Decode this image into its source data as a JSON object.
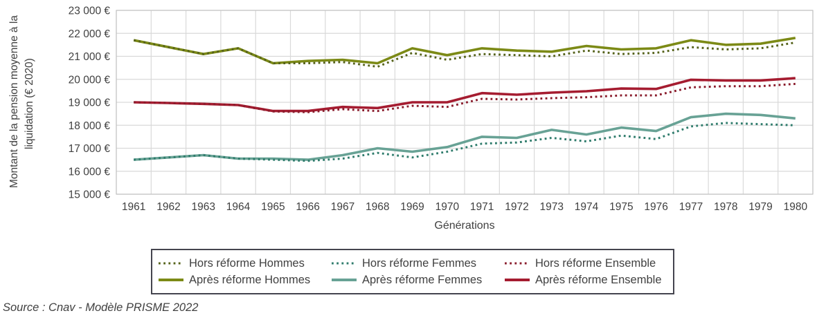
{
  "y_axis": {
    "title_line1": "Montant de la pension moyenne à la",
    "title_line2": "liquidation (€ 2020)",
    "tick_labels": [
      "23 000 €",
      "22 000 €",
      "21 000 €",
      "20 000 €",
      "19 000 €",
      "18 000 €",
      "17 000 €",
      "16 000 €",
      "15 000 €"
    ]
  },
  "x_axis": {
    "title": "Générations"
  },
  "source": "Source : Cnav - Modèle PRISME 2022",
  "style_colors": {
    "grid": "#d9d9d9",
    "plot_border": "#c3c3c3",
    "text": "#404040",
    "legend_border": "#44444e",
    "olive_solid": "#7c8a16",
    "olive_dotted": "#55621a",
    "teal_solid": "#68a295",
    "teal_dotted": "#2f7c6c",
    "red_solid": "#a51c30",
    "red_dotted": "#8a1c2c"
  },
  "chart_data": {
    "type": "line",
    "title": "",
    "xlabel": "Générations",
    "ylabel": "Montant de la pension moyenne à la liquidation (€ 2020)",
    "ylim": [
      15000,
      23000
    ],
    "y_tick_step": 1000,
    "grid": true,
    "legend_position": "bottom",
    "categories": [
      "1961",
      "1962",
      "1963",
      "1964",
      "1965",
      "1966",
      "1967",
      "1968",
      "1969",
      "1970",
      "1971",
      "1972",
      "1973",
      "1974",
      "1975",
      "1976",
      "1977",
      "1978",
      "1979",
      "1980"
    ],
    "series": [
      {
        "name": "Hors réforme Hommes",
        "style": "dotted",
        "color": "#55621a",
        "values": [
          21700,
          21400,
          21100,
          21350,
          20700,
          20700,
          20750,
          20550,
          21150,
          20850,
          21100,
          21050,
          21000,
          21250,
          21100,
          21150,
          21400,
          21300,
          21350,
          21600
        ]
      },
      {
        "name": "Hors réforme Femmes",
        "style": "dotted",
        "color": "#2f7c6c",
        "values": [
          16500,
          16600,
          16700,
          16550,
          16500,
          16450,
          16550,
          16800,
          16600,
          16850,
          17200,
          17250,
          17450,
          17300,
          17550,
          17400,
          17950,
          18100,
          18050,
          18000
        ]
      },
      {
        "name": "Hors réforme Ensemble",
        "style": "dotted",
        "color": "#8a1c2c",
        "values": [
          19000,
          18970,
          18930,
          18880,
          18600,
          18570,
          18700,
          18620,
          18850,
          18800,
          19150,
          19120,
          19180,
          19220,
          19300,
          19300,
          19650,
          19700,
          19700,
          19800
        ]
      },
      {
        "name": "Après réforme Hommes",
        "style": "solid",
        "color": "#7c8a16",
        "values": [
          21700,
          21400,
          21100,
          21350,
          20700,
          20800,
          20850,
          20700,
          21350,
          21050,
          21350,
          21250,
          21200,
          21450,
          21300,
          21350,
          21700,
          21500,
          21550,
          21800
        ]
      },
      {
        "name": "Après réforme Femmes",
        "style": "solid",
        "color": "#68a295",
        "values": [
          16500,
          16600,
          16700,
          16550,
          16550,
          16500,
          16700,
          17000,
          16850,
          17050,
          17500,
          17450,
          17800,
          17600,
          17900,
          17750,
          18350,
          18500,
          18450,
          18300
        ]
      },
      {
        "name": "Après réforme Ensemble",
        "style": "solid",
        "color": "#a51c30",
        "values": [
          19000,
          18970,
          18930,
          18880,
          18620,
          18620,
          18800,
          18750,
          19000,
          19000,
          19400,
          19330,
          19420,
          19480,
          19600,
          19580,
          19980,
          19950,
          19950,
          20050
        ]
      }
    ]
  }
}
